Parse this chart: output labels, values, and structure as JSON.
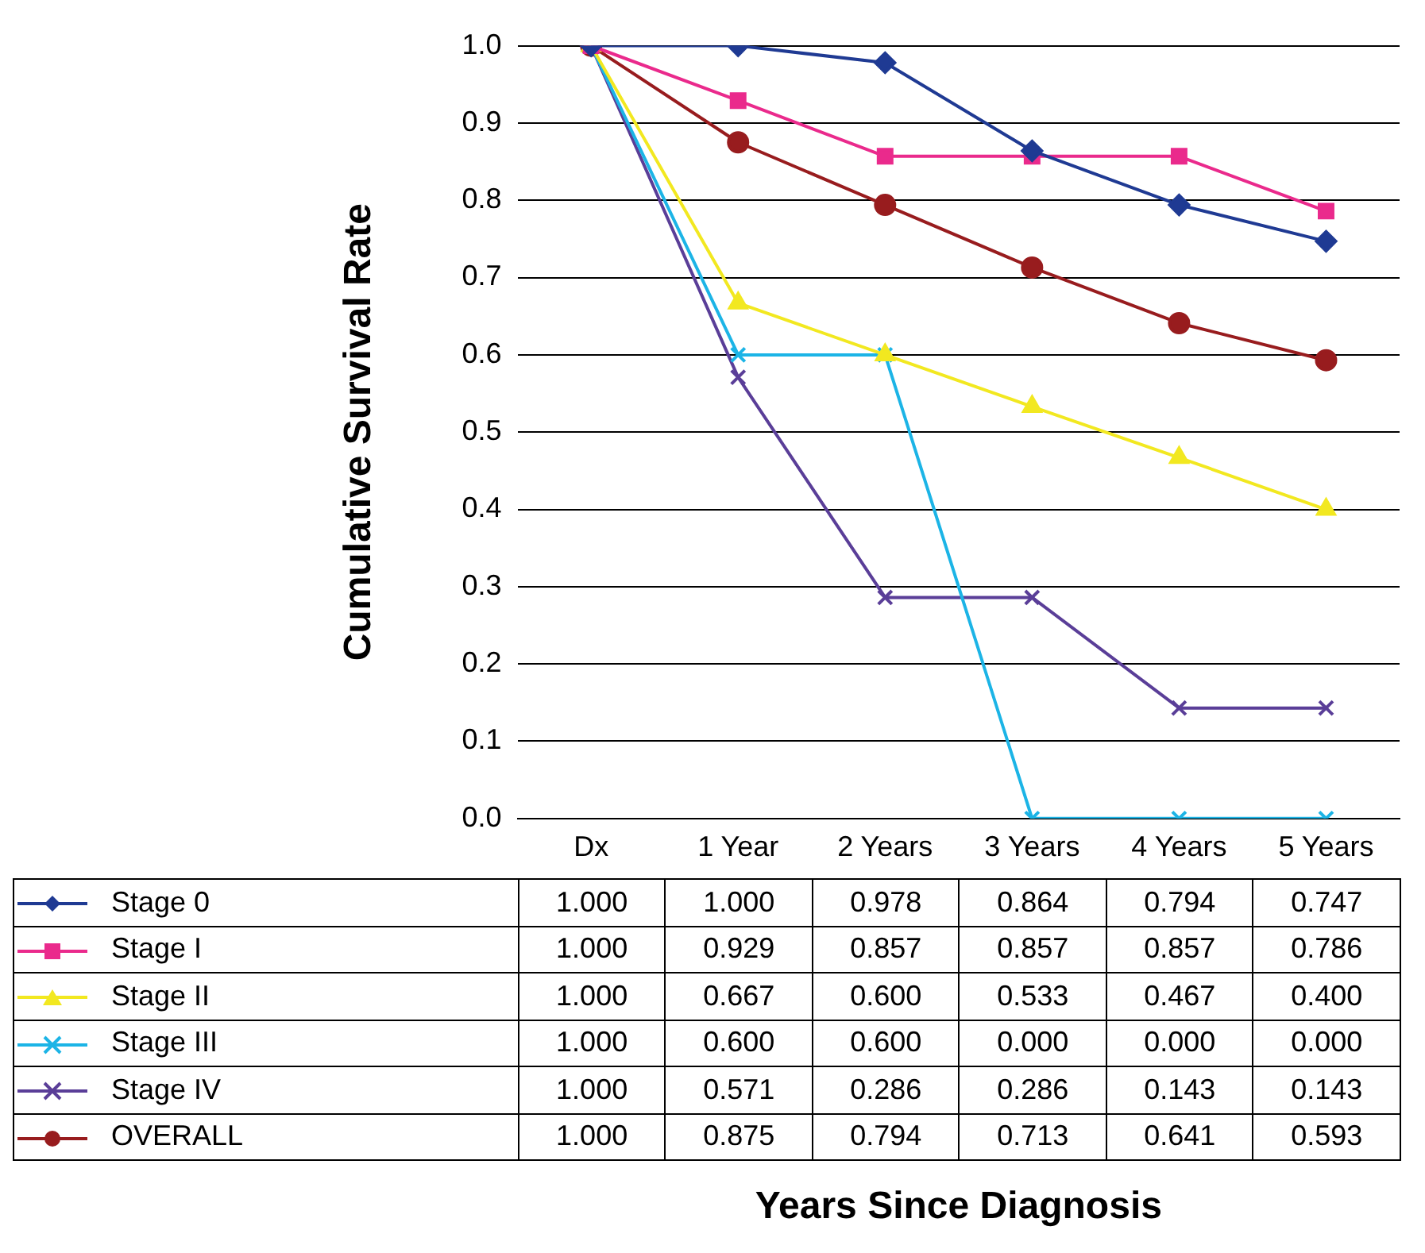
{
  "chart_data": {
    "type": "line",
    "annotations": [
      "Years Since Diagnosis"
    ],
    "ylabel": "Cumulative Survival Rate",
    "categories": [
      "Dx",
      "1 Year",
      "2 Years",
      "3 Years",
      "4 Years",
      "5 Years"
    ],
    "ylim": [
      0,
      1
    ],
    "yticks": [
      {
        "value": 0,
        "label": "0.0"
      },
      0.1,
      0.2,
      0.3,
      0.4,
      0.5,
      0.6,
      0.7,
      0.8,
      0.9,
      {
        "value": 1,
        "label": "1.0"
      }
    ],
    "grid": "y",
    "legend": "bottom",
    "series": [
      {
        "name": "Stage 0",
        "color": "#1f3a93",
        "marker": "diamond",
        "values": [
          1,
          1,
          0.978,
          0.864,
          0.794,
          0.747
        ],
        "value_labels": [
          "1.000",
          "1.000",
          "0.978",
          "0.864",
          "0.794",
          "0.747"
        ]
      },
      {
        "name": "Stage I",
        "color": "#ea2a8c",
        "marker": "square",
        "values": [
          1,
          0.929,
          0.857,
          0.857,
          0.857,
          0.786
        ],
        "value_labels": [
          "1.000",
          "0.929",
          "0.857",
          "0.857",
          "0.857",
          "0.786"
        ]
      },
      {
        "name": "Stage II",
        "color": "#f2e820",
        "marker": "triangle",
        "values": [
          1,
          0.667,
          0.6,
          0.533,
          0.467,
          0.4
        ],
        "value_labels": [
          "1.000",
          "0.667",
          "0.600",
          "0.533",
          "0.467",
          "0.400"
        ]
      },
      {
        "name": "Stage III",
        "color": "#1cb4e6",
        "marker": "cross",
        "values": [
          1,
          0.6,
          0.6,
          0,
          0,
          0
        ],
        "value_labels": [
          "1.000",
          "0.600",
          "0.600",
          "0.000",
          "0.000",
          "0.000"
        ]
      },
      {
        "name": "Stage IV",
        "color": "#5a3e98",
        "marker": "cross",
        "values": [
          1,
          0.571,
          0.286,
          0.286,
          0.143,
          0.143
        ],
        "value_labels": [
          "1.000",
          "0.571",
          "0.286",
          "0.286",
          "0.143",
          "0.143"
        ]
      },
      {
        "name": "OVERALL",
        "color": "#981c1e",
        "marker": "circle",
        "values": [
          1,
          0.875,
          0.794,
          0.713,
          0.641,
          0.593
        ],
        "value_labels": [
          "1.000",
          "0.875",
          "0.794",
          "0.713",
          "0.641",
          "0.593"
        ]
      }
    ]
  }
}
